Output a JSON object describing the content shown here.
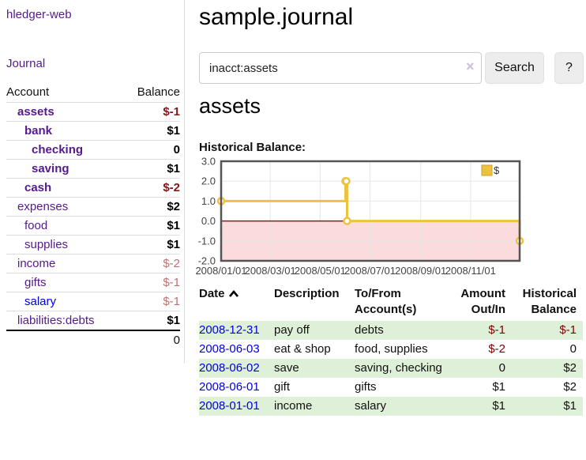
{
  "sidebar": {
    "brand": "hledger-web",
    "journal_link": "Journal",
    "accounts_table": {
      "account_header": "Account",
      "balance_header": "Balance",
      "rows": [
        {
          "name": "assets",
          "indent": 1,
          "bold": true,
          "link_color": "purple",
          "balance": "$-1",
          "balance_style": "neg-strong"
        },
        {
          "name": "bank",
          "indent": 2,
          "bold": true,
          "link_color": "purple",
          "balance": "$1",
          "balance_style": "pos"
        },
        {
          "name": "checking",
          "indent": 3,
          "bold": true,
          "link_color": "purple",
          "balance": "0",
          "balance_style": "pos"
        },
        {
          "name": "saving",
          "indent": 3,
          "bold": true,
          "link_color": "purple",
          "balance": "$1",
          "balance_style": "pos"
        },
        {
          "name": "cash",
          "indent": 2,
          "bold": true,
          "link_color": "purple",
          "balance": "$-2",
          "balance_style": "neg-strong"
        },
        {
          "name": "expenses",
          "indent": 1,
          "bold": false,
          "link_color": "purple",
          "balance": "$2",
          "balance_style": "pos"
        },
        {
          "name": "food",
          "indent": 2,
          "bold": false,
          "link_color": "purple",
          "balance": "$1",
          "balance_style": "pos"
        },
        {
          "name": "supplies",
          "indent": 2,
          "bold": false,
          "link_color": "purple",
          "balance": "$1",
          "balance_style": "pos"
        },
        {
          "name": "income",
          "indent": 1,
          "bold": false,
          "link_color": "purple",
          "balance": "$-2",
          "balance_style": "neg-soft"
        },
        {
          "name": "gifts",
          "indent": 2,
          "bold": false,
          "link_color": "purple",
          "balance": "$-1",
          "balance_style": "neg-soft"
        },
        {
          "name": "salary",
          "indent": 2,
          "bold": false,
          "link_color": "blue",
          "balance": "$-1",
          "balance_style": "neg-soft"
        },
        {
          "name": "liabilities:debts",
          "indent": 1,
          "bold": false,
          "link_color": "purple",
          "balance": "$1",
          "balance_style": "pos"
        }
      ],
      "total": "0"
    }
  },
  "main": {
    "title": "sample.journal",
    "search": {
      "value": "inacct:assets",
      "clear_icon": "×",
      "button_label": "Search",
      "help_label": "?"
    },
    "account_heading": "assets",
    "chart_label": "Historical Balance:"
  },
  "chart_data": {
    "type": "line",
    "step": true,
    "title": "Historical Balance",
    "series": [
      {
        "name": "$",
        "color": "#edc240",
        "points": [
          [
            "2008-01-01",
            1
          ],
          [
            "2008-06-01",
            2
          ],
          [
            "2008-06-02",
            2
          ],
          [
            "2008-06-03",
            0
          ],
          [
            "2008-12-31",
            -1
          ]
        ]
      }
    ],
    "x_ticks": [
      "2008/01/01",
      "2008/03/01",
      "2008/05/01",
      "2008/07/01",
      "2008/09/01",
      "2008/11/01"
    ],
    "y_ticks": [
      3.0,
      2.0,
      1.0,
      0.0,
      -1.0,
      -2.0
    ],
    "xlim": [
      "2008-01-01",
      "2008-12-31"
    ],
    "ylim": [
      -2,
      3
    ],
    "grid": true,
    "legend": {
      "label": "$",
      "position": "top-right"
    },
    "negative_region_color": "#fbdbdb",
    "zero_line_color": "#8b1a1a",
    "grid_color": "#e6e6e6",
    "border_color": "#555555",
    "tick_label_color": "#444444"
  },
  "register_table": {
    "headers": {
      "date": "Date",
      "description": "Description",
      "accounts": "To/From Account(s)",
      "amount": "Amount Out/In",
      "balance": "Historical Balance"
    },
    "sort_icon": "chevron-up",
    "rows": [
      {
        "date": "2008-12-31",
        "description": "pay off",
        "accounts": "debts",
        "amount": "$-1",
        "amount_neg": true,
        "balance": "$-1",
        "balance_neg": true,
        "striped": true
      },
      {
        "date": "2008-06-03",
        "description": "eat & shop",
        "accounts": "food, supplies",
        "amount": "$-2",
        "amount_neg": true,
        "balance": "0",
        "balance_neg": false,
        "striped": false
      },
      {
        "date": "2008-06-02",
        "description": "save",
        "accounts": "saving, checking",
        "amount": "0",
        "amount_neg": false,
        "balance": "$2",
        "balance_neg": false,
        "striped": true
      },
      {
        "date": "2008-06-01",
        "description": "gift",
        "accounts": "gifts",
        "amount": "$1",
        "amount_neg": false,
        "balance": "$2",
        "balance_neg": false,
        "striped": false
      },
      {
        "date": "2008-01-01",
        "description": "income",
        "accounts": "salary",
        "amount": "$1",
        "amount_neg": false,
        "balance": "$1",
        "balance_neg": false,
        "striped": true
      }
    ]
  },
  "colors": {
    "link_purple": "#551a8b",
    "link_blue": "#0000e0",
    "negative_strong": "#7a1a1a",
    "negative_soft": "#b87272",
    "table_negative": "#800000",
    "stripe_green": "#dff0d8",
    "series_yellow": "#edc240"
  }
}
